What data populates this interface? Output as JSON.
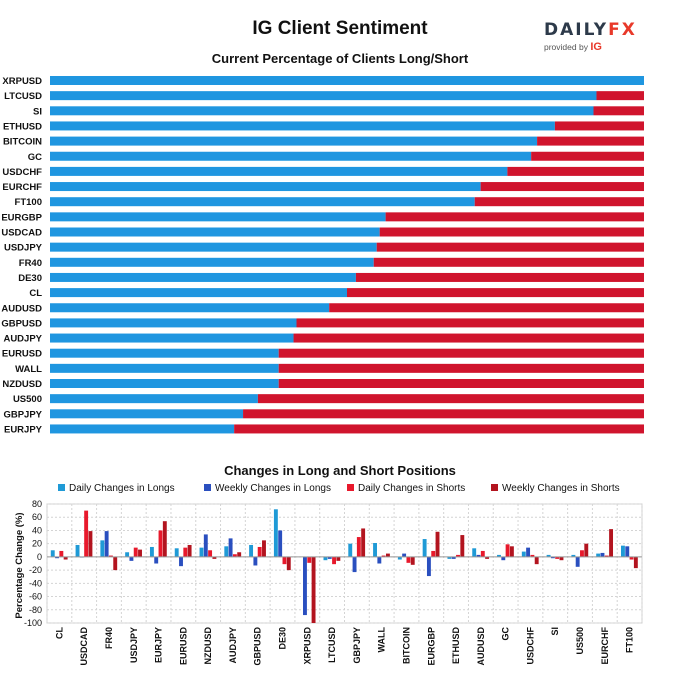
{
  "header": {
    "title": "IG Client Sentiment",
    "logo_word_a": "DAILY",
    "logo_word_b": "FX",
    "logo_sub": "provided by",
    "logo_ig": "IG"
  },
  "colors": {
    "long": "#1f96e0",
    "short": "#d0142d",
    "daily_longs": "#1f9ad6",
    "weekly_longs": "#2a4fbf",
    "daily_shorts": "#e8192c",
    "weekly_shorts": "#b3141f"
  },
  "chart_data": [
    {
      "type": "bar",
      "orientation": "horizontal-stacked",
      "title": "Current Percentage of Clients Long/Short",
      "categories": [
        "XRPUSD",
        "LTCUSD",
        "SI",
        "ETHUSD",
        "BITCOIN",
        "GC",
        "USDCHF",
        "EURCHF",
        "FT100",
        "EURGBP",
        "USDCAD",
        "USDJPY",
        "FR40",
        "DE30",
        "CL",
        "AUDUSD",
        "GBPUSD",
        "AUDJPY",
        "EURUSD",
        "WALL",
        "NZDUSD",
        "US500",
        "GBPJPY",
        "EURJPY"
      ],
      "series": [
        {
          "name": "Long",
          "values": [
            100,
            92,
            91.5,
            85,
            82,
            81,
            77,
            72.5,
            71.5,
            56.5,
            55.5,
            55,
            54.5,
            51.5,
            50,
            47,
            41.5,
            41,
            38.5,
            38.5,
            38.5,
            35,
            32.5,
            31
          ]
        },
        {
          "name": "Short",
          "values": [
            0,
            8,
            8.5,
            15,
            18,
            19,
            23,
            27.5,
            28.5,
            43.5,
            44.5,
            45,
            45.5,
            48.5,
            50,
            53,
            58.5,
            59,
            61.5,
            61.5,
            61.5,
            65,
            67.5,
            69
          ]
        }
      ],
      "xlim": [
        0,
        100
      ]
    },
    {
      "type": "bar",
      "title": "Changes in Long and Short Positions",
      "ylabel": "Percentage Change (%)",
      "ylim": [
        -100,
        80
      ],
      "yticks": [
        80,
        60,
        40,
        20,
        0,
        -20,
        -40,
        -60,
        -80,
        -100
      ],
      "categories": [
        "CL",
        "USDCAD",
        "FR40",
        "USDJPY",
        "EURJPY",
        "EURUSD",
        "NZDUSD",
        "AUDJPY",
        "GBPUSD",
        "DE30",
        "XRPUSD",
        "LTCUSD",
        "GBPJPY",
        "WALL",
        "BITCOIN",
        "EURGBP",
        "ETHUSD",
        "AUDUSD",
        "GC",
        "USDCHF",
        "SI",
        "US500",
        "EURCHF",
        "FT100"
      ],
      "legend_position": "top",
      "series": [
        {
          "name": "Daily Changes in Longs",
          "values": [
            10,
            18,
            25,
            7,
            15,
            13,
            14,
            16,
            18,
            72,
            0,
            -5,
            20,
            21,
            -4,
            27,
            -3,
            13,
            3,
            8,
            3,
            3,
            5,
            17
          ]
        },
        {
          "name": "Weekly Changes in Longs",
          "values": [
            -2,
            -1,
            39,
            -6,
            -10,
            -14,
            34,
            28,
            -13,
            40,
            -88,
            -3,
            -23,
            -10,
            5,
            -29,
            -3,
            3,
            -5,
            14,
            -2,
            -15,
            6,
            16
          ]
        },
        {
          "name": "Daily Changes in Shorts",
          "values": [
            9,
            70,
            2,
            14,
            40,
            14,
            10,
            4,
            15,
            -11,
            -9,
            -11,
            30,
            2,
            -9,
            9,
            3,
            9,
            19,
            3,
            -3,
            10,
            2,
            -4
          ]
        },
        {
          "name": "Weekly Changes in Shorts",
          "values": [
            -4,
            39,
            -20,
            11,
            54,
            18,
            -3,
            7,
            25,
            -20,
            -100,
            -6,
            43,
            5,
            -12,
            38,
            33,
            -3,
            16,
            -11,
            -5,
            20,
            42,
            -17
          ]
        }
      ]
    }
  ]
}
